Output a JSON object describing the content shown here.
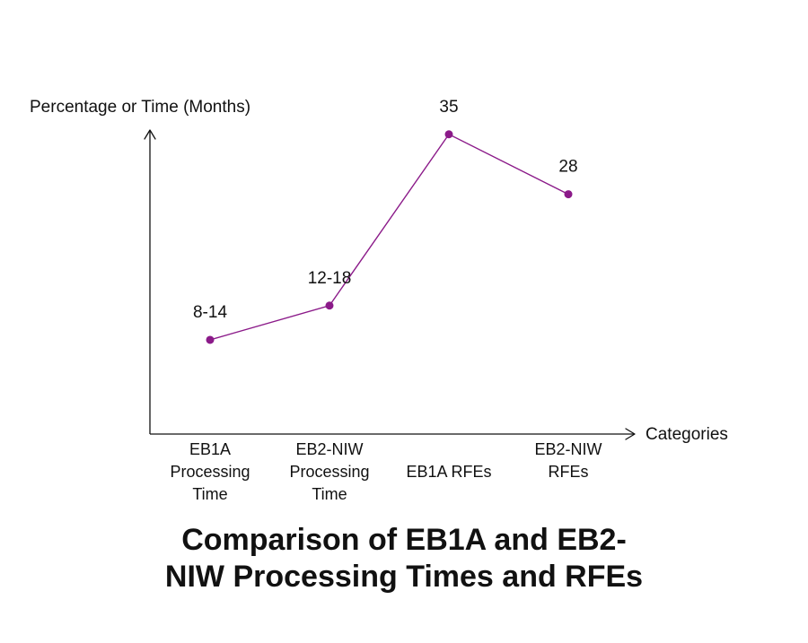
{
  "chart_data": {
    "type": "line",
    "title_lines": [
      "Comparison of EB1A and EB2-",
      "NIW Processing Times and RFEs"
    ],
    "xlabel": "Categories",
    "ylabel": "Percentage or Time (Months)",
    "categories": [
      [
        "EB1A",
        "Processing",
        "Time"
      ],
      [
        "EB2-NIW",
        "Processing",
        "Time"
      ],
      [
        "EB1A RFEs"
      ],
      [
        "EB2-NIW",
        "RFEs"
      ]
    ],
    "series": [
      {
        "values": [
          11,
          15,
          35,
          28
        ],
        "labels": [
          "8-14",
          "12-18",
          "35",
          "28"
        ]
      }
    ],
    "ylim": [
      0,
      40
    ],
    "grid": false,
    "legend": "none",
    "colors": {
      "series": "#8b1a89",
      "axis": "#111111"
    }
  }
}
